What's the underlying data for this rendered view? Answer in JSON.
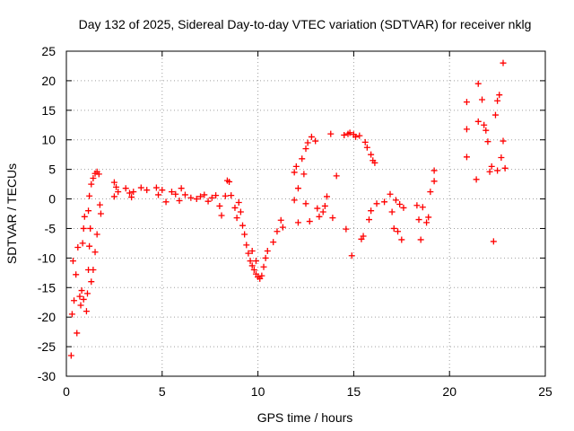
{
  "chart_data": {
    "type": "scatter",
    "title": "Day 132 of 2025, Sidereal Day-to-day VTEC variation (SDTVAR) for receiver nklg",
    "xlabel": "GPS time / hours",
    "ylabel": "SDTVAR / TECUs",
    "xlim": [
      0,
      25
    ],
    "ylim": [
      -30,
      25
    ],
    "xticks": [
      0,
      5,
      10,
      15,
      20,
      25
    ],
    "yticks": [
      -30,
      -25,
      -20,
      -15,
      -10,
      -5,
      0,
      5,
      10,
      15,
      20,
      25
    ],
    "xtick_labels": [
      "0",
      "5",
      "10",
      "15",
      "20",
      "25"
    ],
    "ytick_labels": [
      "-30",
      "-25",
      "-20",
      "-15",
      "-10",
      "-5",
      "0",
      "5",
      "10",
      "15",
      "20",
      "25"
    ],
    "grid": true,
    "marker": "+",
    "color": "#ff0000",
    "series": [
      {
        "name": "SDTVAR",
        "points": [
          [
            0.25,
            -26.5
          ],
          [
            0.3,
            -19.5
          ],
          [
            0.35,
            -10.5
          ],
          [
            0.4,
            -17.2
          ],
          [
            0.5,
            -12.8
          ],
          [
            0.55,
            -22.7
          ],
          [
            0.6,
            -8.2
          ],
          [
            0.7,
            -16.5
          ],
          [
            0.75,
            -18
          ],
          [
            0.8,
            -15.5
          ],
          [
            0.85,
            -7.5
          ],
          [
            0.9,
            -5
          ],
          [
            0.95,
            -3
          ],
          [
            0.9,
            -17
          ],
          [
            1.05,
            -19
          ],
          [
            1.1,
            -16
          ],
          [
            1.15,
            -12
          ],
          [
            1.2,
            -8
          ],
          [
            1.15,
            -2
          ],
          [
            1.2,
            0.5
          ],
          [
            1.3,
            2.5
          ],
          [
            1.4,
            3.5
          ],
          [
            1.5,
            4.3
          ],
          [
            1.6,
            4.6
          ],
          [
            1.7,
            4.2
          ],
          [
            1.75,
            -1
          ],
          [
            1.8,
            -2.5
          ],
          [
            1.6,
            -6
          ],
          [
            1.5,
            -9
          ],
          [
            1.4,
            -12
          ],
          [
            1.3,
            -14
          ],
          [
            1.25,
            -5
          ],
          [
            2.5,
            2.8
          ],
          [
            2.6,
            2
          ],
          [
            2.7,
            1.2
          ],
          [
            2.5,
            0.4
          ],
          [
            3.1,
            1.8
          ],
          [
            3.3,
            1
          ],
          [
            3.4,
            0.3
          ],
          [
            3.5,
            1.2
          ],
          [
            3.9,
            1.9
          ],
          [
            4.2,
            1.5
          ],
          [
            4.7,
            1.9
          ],
          [
            4.8,
            0.7
          ],
          [
            5.0,
            1.5
          ],
          [
            5.2,
            -0.5
          ],
          [
            5.5,
            1.2
          ],
          [
            5.7,
            0.8
          ],
          [
            5.9,
            -0.3
          ],
          [
            6.0,
            1.8
          ],
          [
            6.2,
            0.7
          ],
          [
            6.5,
            0.2
          ],
          [
            6.8,
            0
          ],
          [
            7.0,
            0.4
          ],
          [
            7.2,
            0.7
          ],
          [
            7.4,
            -0.4
          ],
          [
            7.6,
            0.2
          ],
          [
            7.8,
            0.6
          ],
          [
            8.0,
            -1.2
          ],
          [
            8.1,
            -2.8
          ],
          [
            8.3,
            0.5
          ],
          [
            8.4,
            3.1
          ],
          [
            8.5,
            2.9
          ],
          [
            8.6,
            0.6
          ],
          [
            8.8,
            -1.5
          ],
          [
            8.9,
            -3.2
          ],
          [
            9.0,
            -0.6
          ],
          [
            9.1,
            -2.2
          ],
          [
            9.2,
            -4.5
          ],
          [
            9.3,
            -6
          ],
          [
            9.4,
            -7.8
          ],
          [
            9.5,
            -9.2
          ],
          [
            9.6,
            -10.5
          ],
          [
            9.7,
            -11.3
          ],
          [
            9.8,
            -12
          ],
          [
            9.9,
            -12.7
          ],
          [
            10.0,
            -13.2
          ],
          [
            10.1,
            -13.5
          ],
          [
            10.2,
            -13
          ],
          [
            10.3,
            -11.5
          ],
          [
            10.4,
            -10
          ],
          [
            10.5,
            -8.8
          ],
          [
            9.7,
            -8.8
          ],
          [
            9.9,
            -10.5
          ],
          [
            10.8,
            -7.3
          ],
          [
            11.0,
            -5.5
          ],
          [
            11.2,
            -3.6
          ],
          [
            11.3,
            -4.8
          ],
          [
            11.9,
            4.5
          ],
          [
            11.9,
            -0.2
          ],
          [
            12.0,
            5.5
          ],
          [
            12.1,
            1.8
          ],
          [
            12.1,
            -4
          ],
          [
            12.3,
            6.8
          ],
          [
            12.4,
            4.2
          ],
          [
            12.5,
            8.5
          ],
          [
            12.5,
            -0.8
          ],
          [
            12.6,
            9.5
          ],
          [
            12.7,
            -3.8
          ],
          [
            12.8,
            10.5
          ],
          [
            13.0,
            9.8
          ],
          [
            13.1,
            -1.6
          ],
          [
            13.2,
            -3
          ],
          [
            13.4,
            -2.2
          ],
          [
            13.5,
            -1.2
          ],
          [
            13.6,
            0.4
          ],
          [
            13.8,
            11
          ],
          [
            13.9,
            -3.2
          ],
          [
            14.1,
            3.9
          ],
          [
            14.5,
            10.8
          ],
          [
            14.6,
            -5.1
          ],
          [
            14.7,
            11
          ],
          [
            14.8,
            11.2
          ],
          [
            14.9,
            -9.6
          ],
          [
            15.0,
            10.9
          ],
          [
            15.1,
            10.5
          ],
          [
            15.3,
            10.7
          ],
          [
            15.4,
            -6.8
          ],
          [
            15.5,
            -6.3
          ],
          [
            15.6,
            9.6
          ],
          [
            15.7,
            8.7
          ],
          [
            15.8,
            -3.5
          ],
          [
            15.9,
            -2
          ],
          [
            15.9,
            7.5
          ],
          [
            16.0,
            6.5
          ],
          [
            16.1,
            6.1
          ],
          [
            16.2,
            -0.8
          ],
          [
            16.6,
            -0.5
          ],
          [
            16.9,
            0.8
          ],
          [
            17.0,
            -2.2
          ],
          [
            17.1,
            -5
          ],
          [
            17.3,
            -5.5
          ],
          [
            17.5,
            -6.9
          ],
          [
            17.2,
            -0.2
          ],
          [
            17.4,
            -0.9
          ],
          [
            17.6,
            -1.5
          ],
          [
            18.3,
            -1.1
          ],
          [
            18.4,
            -3.5
          ],
          [
            18.5,
            -6.9
          ],
          [
            18.6,
            -1.4
          ],
          [
            18.8,
            -4
          ],
          [
            18.9,
            -3.1
          ],
          [
            19.0,
            1.2
          ],
          [
            19.2,
            3
          ],
          [
            19.2,
            4.8
          ],
          [
            20.9,
            16.4
          ],
          [
            20.9,
            7.1
          ],
          [
            20.9,
            11.8
          ],
          [
            21.4,
            3.3
          ],
          [
            21.5,
            13.1
          ],
          [
            21.5,
            19.5
          ],
          [
            21.7,
            16.8
          ],
          [
            21.8,
            12.5
          ],
          [
            21.9,
            11.6
          ],
          [
            22.0,
            9.7
          ],
          [
            22.1,
            4.6
          ],
          [
            22.2,
            5.5
          ],
          [
            22.3,
            -7.2
          ],
          [
            22.4,
            14.2
          ],
          [
            22.5,
            16.6
          ],
          [
            22.6,
            17.6
          ],
          [
            22.5,
            4.8
          ],
          [
            22.8,
            23
          ],
          [
            22.8,
            9.8
          ],
          [
            22.9,
            5.2
          ],
          [
            22.7,
            7
          ]
        ]
      }
    ]
  }
}
